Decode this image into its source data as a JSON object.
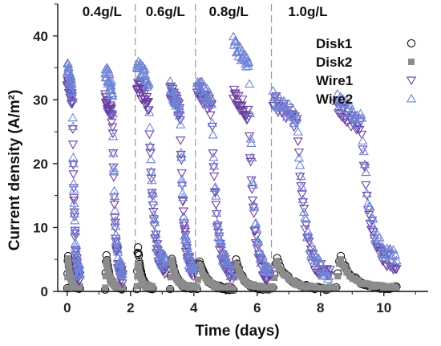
{
  "chart_data": {
    "type": "scatter",
    "title": "",
    "xlabel": "Time (days)",
    "ylabel": "Current density (A/m²)",
    "xlim": [
      -0.3,
      11.4
    ],
    "ylim": [
      0,
      45
    ],
    "x_ticks": [
      0,
      2,
      4,
      6,
      8,
      10
    ],
    "y_ticks": [
      0,
      10,
      20,
      30,
      40
    ],
    "grid": false,
    "legend_position": "top-right",
    "concentration_labels": [
      {
        "text": "0.4g/L",
        "x": 1.1
      },
      {
        "text": "0.6g/L",
        "x": 3.1
      },
      {
        "text": "0.8g/L",
        "x": 5.1
      },
      {
        "text": "1.0g/L",
        "x": 7.6
      }
    ],
    "dividers_x": [
      2.15,
      4.05,
      6.45
    ],
    "series": [
      {
        "name": "Disk1",
        "marker": "circle-open",
        "color": "#111111",
        "cycles": [
          [
            0.0,
            0.4,
            0.5,
            6.0
          ],
          [
            1.2,
            1.75,
            0.5,
            5.8
          ],
          [
            2.2,
            2.7,
            0.5,
            7.2
          ],
          [
            3.25,
            4.0,
            0.5,
            5.6
          ],
          [
            4.1,
            5.2,
            0.4,
            5.0
          ],
          [
            5.25,
            6.4,
            0.4,
            5.1
          ],
          [
            6.5,
            8.3,
            0.4,
            5.3
          ],
          [
            8.5,
            10.4,
            0.5,
            5.7
          ]
        ]
      },
      {
        "name": "Disk2",
        "marker": "square-filled",
        "color": "#8c8c8c",
        "cycles": [
          [
            0.0,
            0.4,
            0.6,
            5.2
          ],
          [
            1.2,
            1.75,
            0.6,
            5.0
          ],
          [
            2.2,
            2.7,
            0.6,
            4.6
          ],
          [
            3.25,
            4.0,
            0.6,
            5.0
          ],
          [
            4.1,
            5.2,
            0.5,
            4.4
          ],
          [
            5.25,
            6.4,
            0.5,
            4.6
          ],
          [
            6.5,
            8.3,
            0.5,
            4.8
          ],
          [
            8.5,
            10.4,
            0.6,
            5.1
          ]
        ]
      },
      {
        "name": "Wire1",
        "marker": "triangle-down-open",
        "color": "#6a3fa0",
        "cycles": [
          [
            0.0,
            0.4,
            2.0,
            33.0
          ],
          [
            1.2,
            1.75,
            2.0,
            30.5
          ],
          [
            2.2,
            3.1,
            3.5,
            32.5
          ],
          [
            3.25,
            4.0,
            3.0,
            31.5
          ],
          [
            4.1,
            5.2,
            2.5,
            32.0
          ],
          [
            5.25,
            6.4,
            2.0,
            31.0
          ],
          [
            6.5,
            8.3,
            2.0,
            30.0
          ],
          [
            8.5,
            10.4,
            4.0,
            29.0
          ]
        ]
      },
      {
        "name": "Wire2",
        "marker": "triangle-up-open",
        "color": "#6f83d6",
        "cycles": [
          [
            0.0,
            0.4,
            2.5,
            35.0
          ],
          [
            1.2,
            1.75,
            2.5,
            35.0
          ],
          [
            2.2,
            3.1,
            4.0,
            36.0
          ],
          [
            3.25,
            4.0,
            3.5,
            32.0
          ],
          [
            4.1,
            5.2,
            3.0,
            33.0
          ],
          [
            5.25,
            6.4,
            2.5,
            39.0
          ],
          [
            6.5,
            8.3,
            2.5,
            30.5
          ],
          [
            8.5,
            10.4,
            5.0,
            30.0
          ]
        ]
      }
    ]
  }
}
